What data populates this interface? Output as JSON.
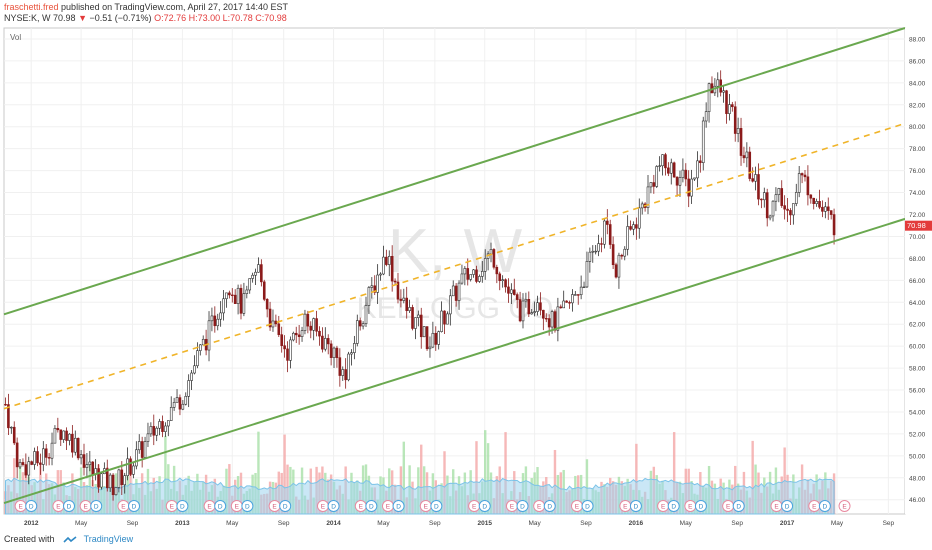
{
  "header": {
    "user": "fraschetti.fred",
    "published_text": "published on TradingView.com, April 27, 2017 14:40 EST"
  },
  "symbol_line": {
    "symbol": "NYSE:K, W",
    "last": "70.98",
    "change": "−0.51 (−0.71%)",
    "open": "O:72.76",
    "high": "H:73.00",
    "low": "L:70.78",
    "close": "C:70.98"
  },
  "watermark": {
    "ticker": "K, W",
    "company": "KELLOGG CO"
  },
  "footer": {
    "created_with": "Created with",
    "brand": "TradingView"
  },
  "colors": {
    "up": "#2e2e2e",
    "down": "#8b1a1a",
    "channel": "#6aa84f",
    "midline": "#f0b429",
    "volume_up": "#a8e0a8",
    "volume_down": "#f4a6a6",
    "volume_ma": "#9fd4ef",
    "price_tag": "#e33b3b"
  },
  "chart_data": {
    "type": "candlestick",
    "panel_label": "Vol",
    "last_price_label": "70.98",
    "yticks": [
      "46.00",
      "48.00",
      "50.00",
      "52.00",
      "54.00",
      "56.00",
      "58.00",
      "60.00",
      "62.00",
      "64.00",
      "66.00",
      "68.00",
      "70.00",
      "72.00",
      "74.00",
      "76.00",
      "78.00",
      "80.00",
      "82.00",
      "84.00",
      "86.00",
      "88.00"
    ],
    "ylim": [
      44.7,
      89
    ],
    "xticks": [
      {
        "label": "2012",
        "t": 2012.0
      },
      {
        "label": "May",
        "t": 2012.33
      },
      {
        "label": "Sep",
        "t": 2012.67
      },
      {
        "label": "2013",
        "t": 2013.0
      },
      {
        "label": "May",
        "t": 2013.33
      },
      {
        "label": "Sep",
        "t": 2013.67
      },
      {
        "label": "2014",
        "t": 2014.0
      },
      {
        "label": "May",
        "t": 2014.33
      },
      {
        "label": "Sep",
        "t": 2014.67
      },
      {
        "label": "2015",
        "t": 2015.0
      },
      {
        "label": "May",
        "t": 2015.33
      },
      {
        "label": "Sep",
        "t": 2015.67
      },
      {
        "label": "2016",
        "t": 2016.0
      },
      {
        "label": "May",
        "t": 2016.33
      },
      {
        "label": "Sep",
        "t": 2016.67
      },
      {
        "label": "2017",
        "t": 2017.0
      },
      {
        "label": "May",
        "t": 2017.33
      },
      {
        "label": "Sep",
        "t": 2017.67
      }
    ],
    "xlim": [
      2011.82,
      2017.78
    ],
    "price_path": [
      [
        2011.83,
        54.7
      ],
      [
        2011.92,
        49.0
      ],
      [
        2012.05,
        49.5
      ],
      [
        2012.2,
        52.5
      ],
      [
        2012.3,
        51.0
      ],
      [
        2012.4,
        48.5
      ],
      [
        2012.55,
        47.3
      ],
      [
        2012.7,
        50.0
      ],
      [
        2012.85,
        53.0
      ],
      [
        2013.0,
        55.5
      ],
      [
        2013.1,
        59.0
      ],
      [
        2013.2,
        62.0
      ],
      [
        2013.3,
        66.0
      ],
      [
        2013.4,
        63.5
      ],
      [
        2013.5,
        67.2
      ],
      [
        2013.6,
        61.5
      ],
      [
        2013.7,
        59.5
      ],
      [
        2013.8,
        62.5
      ],
      [
        2013.9,
        61.0
      ],
      [
        2014.0,
        59.5
      ],
      [
        2014.08,
        57.0
      ],
      [
        2014.15,
        61.5
      ],
      [
        2014.25,
        65.0
      ],
      [
        2014.35,
        68.5
      ],
      [
        2014.45,
        64.0
      ],
      [
        2014.55,
        62.0
      ],
      [
        2014.65,
        60.0
      ],
      [
        2014.72,
        62.5
      ],
      [
        2014.85,
        66.0
      ],
      [
        2014.95,
        67.0
      ],
      [
        2015.05,
        68.5
      ],
      [
        2015.15,
        65.0
      ],
      [
        2015.25,
        63.0
      ],
      [
        2015.35,
        64.5
      ],
      [
        2015.45,
        62.0
      ],
      [
        2015.55,
        63.5
      ],
      [
        2015.65,
        66.0
      ],
      [
        2015.72,
        68.5
      ],
      [
        2015.8,
        71.0
      ],
      [
        2015.87,
        67.0
      ],
      [
        2015.95,
        70.0
      ],
      [
        2016.05,
        73.0
      ],
      [
        2016.15,
        76.5
      ],
      [
        2016.25,
        76.0
      ],
      [
        2016.35,
        74.5
      ],
      [
        2016.42,
        77.0
      ],
      [
        2016.48,
        84.0
      ],
      [
        2016.55,
        83.5
      ],
      [
        2016.62,
        81.5
      ],
      [
        2016.7,
        78.0
      ],
      [
        2016.78,
        75.0
      ],
      [
        2016.88,
        72.5
      ],
      [
        2016.95,
        73.5
      ],
      [
        2017.0,
        72.0
      ],
      [
        2017.08,
        75.5
      ],
      [
        2017.15,
        74.5
      ],
      [
        2017.22,
        72.5
      ],
      [
        2017.32,
        70.98
      ]
    ],
    "channel_upper": [
      [
        2011.82,
        62.9
      ],
      [
        2017.78,
        89.0
      ]
    ],
    "channel_lower": [
      [
        2011.82,
        45.7
      ],
      [
        2017.78,
        71.6
      ]
    ],
    "channel_mid": [
      [
        2011.82,
        54.3
      ],
      [
        2017.78,
        80.3
      ]
    ],
    "events": [
      {
        "type": "E",
        "t": 2011.93
      },
      {
        "type": "D",
        "t": 2012.0
      },
      {
        "type": "E",
        "t": 2012.18
      },
      {
        "type": "D",
        "t": 2012.25
      },
      {
        "type": "E",
        "t": 2012.36
      },
      {
        "type": "D",
        "t": 2012.43
      },
      {
        "type": "E",
        "t": 2012.61
      },
      {
        "type": "D",
        "t": 2012.68
      },
      {
        "type": "E",
        "t": 2012.93
      },
      {
        "type": "D",
        "t": 2013.0
      },
      {
        "type": "E",
        "t": 2013.18
      },
      {
        "type": "D",
        "t": 2013.25
      },
      {
        "type": "E",
        "t": 2013.36
      },
      {
        "type": "D",
        "t": 2013.43
      },
      {
        "type": "E",
        "t": 2013.61
      },
      {
        "type": "D",
        "t": 2013.68
      },
      {
        "type": "E",
        "t": 2013.93
      },
      {
        "type": "D",
        "t": 2014.0
      },
      {
        "type": "E",
        "t": 2014.18
      },
      {
        "type": "D",
        "t": 2014.25
      },
      {
        "type": "E",
        "t": 2014.36
      },
      {
        "type": "D",
        "t": 2014.43
      },
      {
        "type": "E",
        "t": 2014.61
      },
      {
        "type": "D",
        "t": 2014.68
      },
      {
        "type": "E",
        "t": 2014.93
      },
      {
        "type": "D",
        "t": 2015.0
      },
      {
        "type": "E",
        "t": 2015.18
      },
      {
        "type": "D",
        "t": 2015.25
      },
      {
        "type": "E",
        "t": 2015.36
      },
      {
        "type": "D",
        "t": 2015.43
      },
      {
        "type": "E",
        "t": 2015.61
      },
      {
        "type": "D",
        "t": 2015.68
      },
      {
        "type": "E",
        "t": 2015.93
      },
      {
        "type": "D",
        "t": 2016.0
      },
      {
        "type": "E",
        "t": 2016.18
      },
      {
        "type": "D",
        "t": 2016.25
      },
      {
        "type": "E",
        "t": 2016.36
      },
      {
        "type": "D",
        "t": 2016.43
      },
      {
        "type": "E",
        "t": 2016.61
      },
      {
        "type": "D",
        "t": 2016.68
      },
      {
        "type": "E",
        "t": 2016.93
      },
      {
        "type": "D",
        "t": 2017.0
      },
      {
        "type": "E",
        "t": 2017.18
      },
      {
        "type": "D",
        "t": 2017.25
      },
      {
        "type": "E",
        "t": 2017.38
      }
    ]
  }
}
